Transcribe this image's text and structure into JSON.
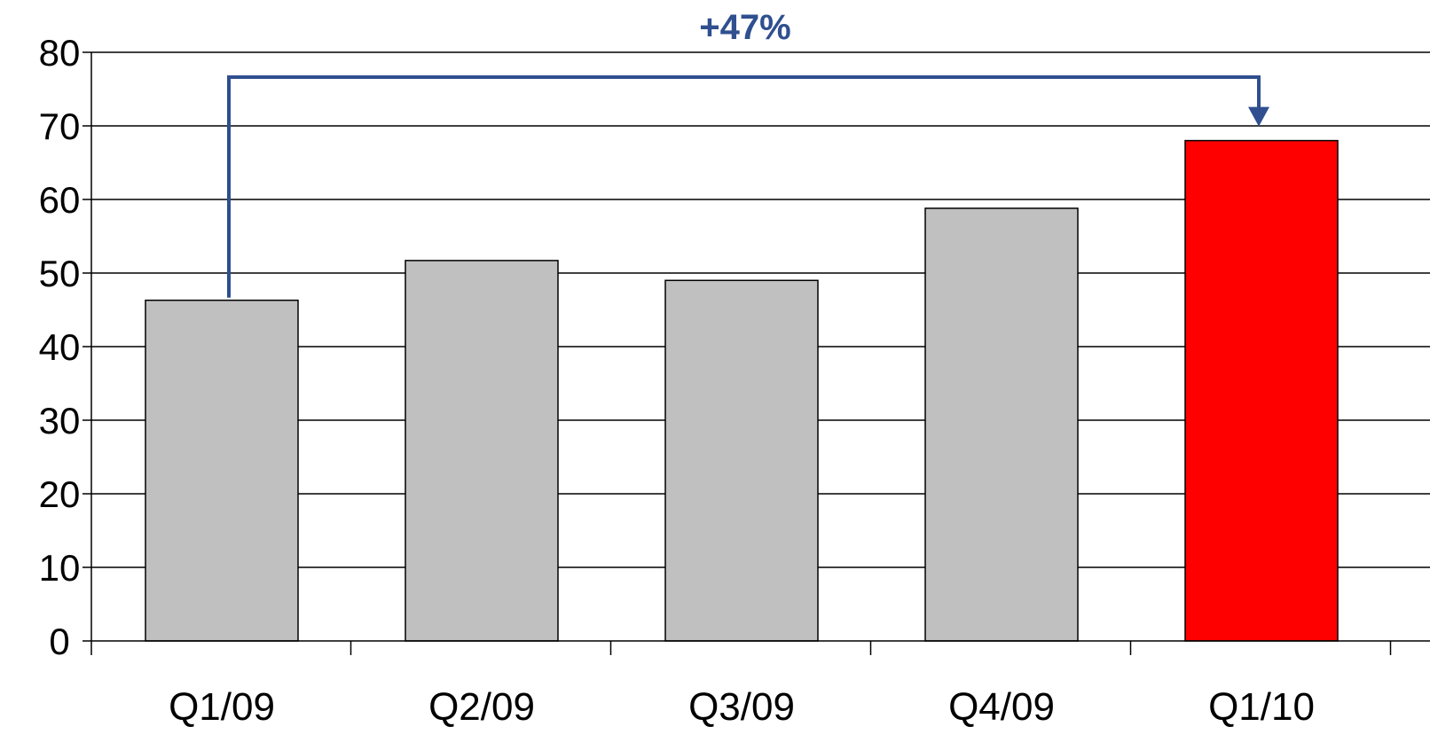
{
  "chart_data": {
    "type": "bar",
    "title": "",
    "xlabel": "",
    "ylabel": "",
    "categories": [
      "Q1/09",
      "Q2/09",
      "Q3/09",
      "Q4/09",
      "Q1/10"
    ],
    "values": [
      46.3,
      51.7,
      49.0,
      58.8,
      68.0
    ],
    "ylim": [
      0,
      80
    ],
    "yticks": [
      "0",
      "10",
      "20",
      "30",
      "40",
      "50",
      "60",
      "70",
      "80"
    ],
    "grid": true,
    "legend": "none",
    "colors": {
      "bar_default": "#c0c0c0",
      "bar_highlight": "#ff0000",
      "annotation": "#2f4f8f",
      "axis": "#000000"
    },
    "highlight_index": 4,
    "annotation": {
      "text": "+47%",
      "from_category": "Q1/09",
      "to_category": "Q1/10"
    }
  }
}
